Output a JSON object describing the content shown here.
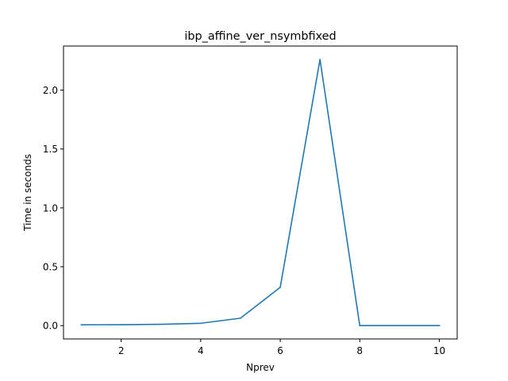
{
  "chart_data": {
    "type": "line",
    "title": "ibp_affine_ver_nsymbfixed",
    "xlabel": "Nprev",
    "ylabel": "Time in seconds",
    "xlim": [
      0.55,
      10.45
    ],
    "ylim": [
      -0.113,
      2.374
    ],
    "xticks": [
      2,
      4,
      6,
      8,
      10
    ],
    "xtick_labels": [
      "2",
      "4",
      "6",
      "8",
      "10"
    ],
    "yticks": [
      0.0,
      0.5,
      1.0,
      1.5,
      2.0
    ],
    "ytick_labels": [
      "0.0",
      "0.5",
      "1.0",
      "1.5",
      "2.0"
    ],
    "grid": false,
    "series": [
      {
        "name": "ibp_affine_ver_nsymbfixed",
        "color": "#1f77b4",
        "x": [
          1,
          2,
          3,
          4,
          5,
          6,
          7,
          8,
          9,
          10
        ],
        "y": [
          0.007,
          0.008,
          0.011,
          0.02,
          0.063,
          0.325,
          2.26,
          0.0,
          0.0,
          0.0
        ]
      }
    ]
  }
}
